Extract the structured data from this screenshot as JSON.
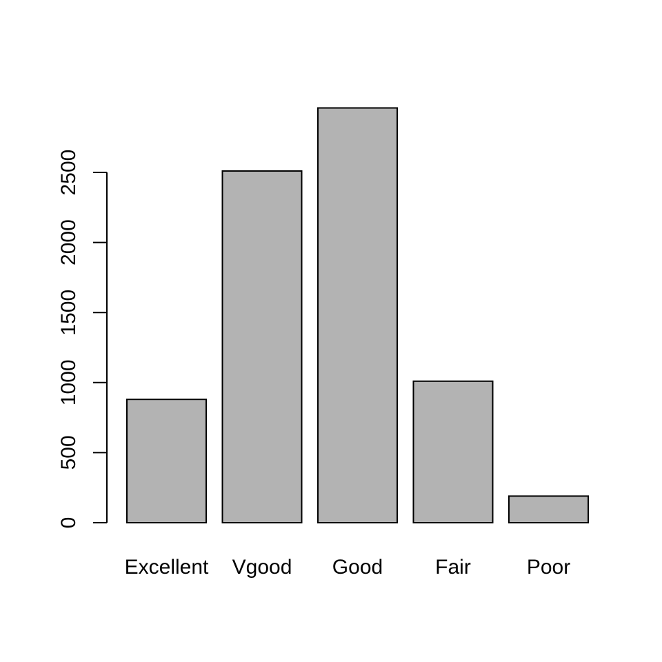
{
  "chart_data": {
    "type": "bar",
    "title": "",
    "xlabel": "",
    "ylabel": "",
    "categories": [
      "Excellent",
      "Vgood",
      "Good",
      "Fair",
      "Poor"
    ],
    "values": [
      880,
      2510,
      2960,
      1010,
      190
    ],
    "ylim": [
      0,
      3000
    ],
    "yticks": [
      0,
      500,
      1000,
      1500,
      2000,
      2500
    ],
    "grid": false,
    "legend": "none",
    "colors": {
      "bar_fill": "#b3b3b3",
      "bar_stroke": "#000000",
      "axis": "#000000",
      "background": "#ffffff"
    }
  }
}
